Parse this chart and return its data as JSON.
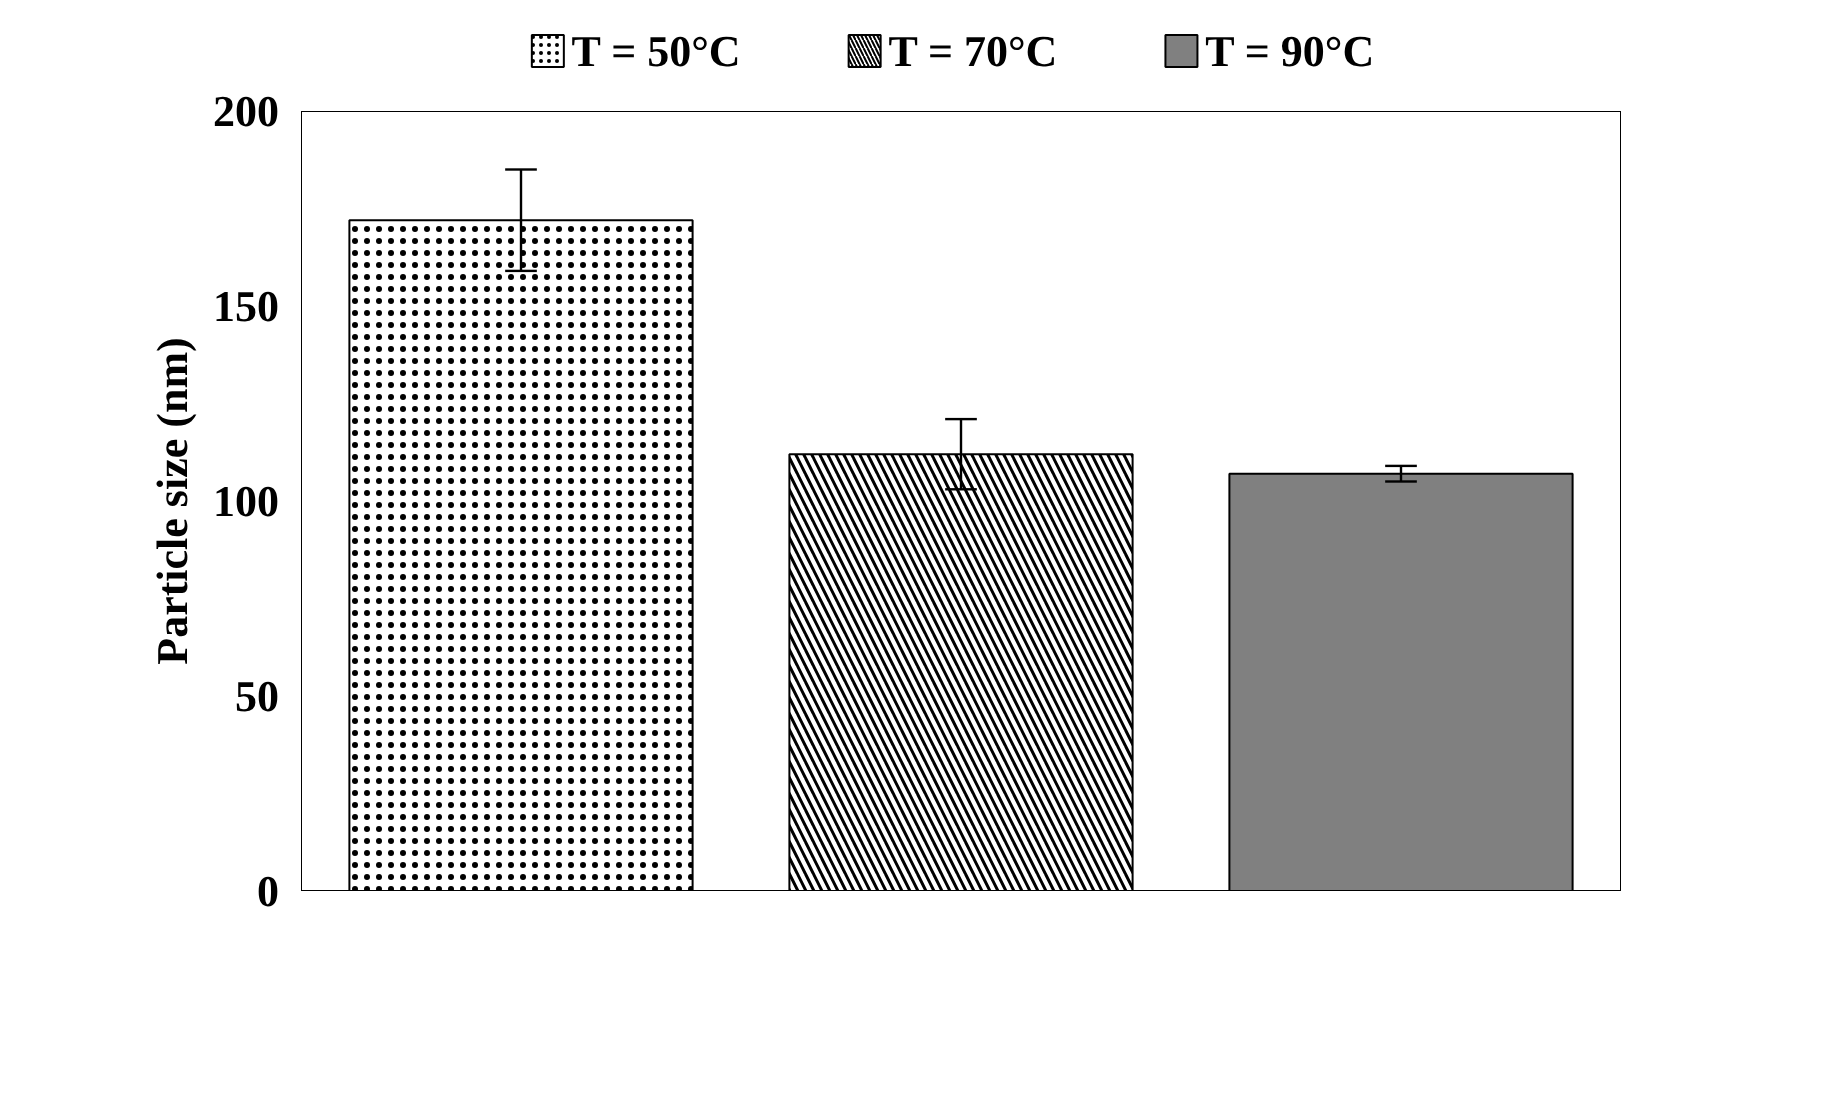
{
  "chart_data": {
    "type": "bar",
    "ylabel": "Particle size (nm)",
    "categories": [
      null
    ],
    "series": [
      {
        "name": "T = 50°C",
        "color": "#ffffff",
        "values": [
          172
        ],
        "errors": [
          13
        ]
      },
      {
        "name": "T = 70°C",
        "color": "#ffffff",
        "values": [
          112
        ],
        "errors": [
          9
        ]
      },
      {
        "name": "T = 90°C",
        "color": "#808080",
        "values": [
          107
        ],
        "errors": [
          2
        ]
      }
    ],
    "ylim": [
      0,
      200
    ],
    "yticks": [
      0,
      50,
      100,
      150,
      200
    ],
    "grid": false,
    "legend": "top"
  }
}
